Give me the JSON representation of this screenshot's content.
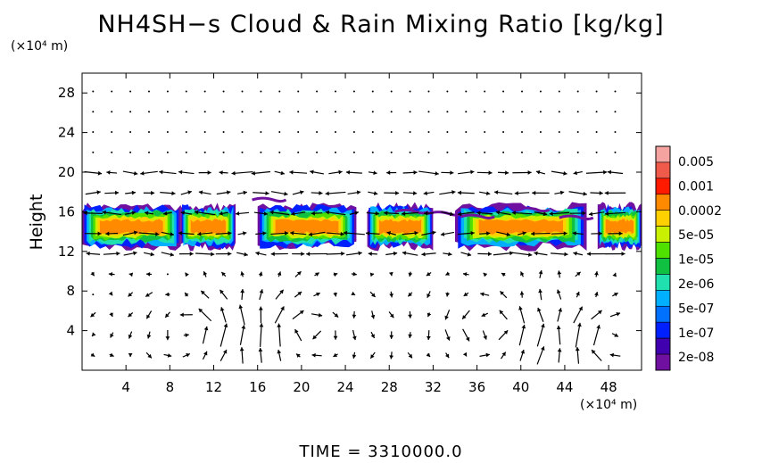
{
  "chart_data": {
    "type": "heatmap",
    "title": "NH4SH−s Cloud & Rain Mixing Ratio [kg/kg]",
    "y_unit": "(×10⁴ m)",
    "x_unit": "(×10⁴ m)",
    "ylabel": "Height",
    "footer": "TIME  =  3310000.0",
    "xlim": [
      0,
      51
    ],
    "ylim": [
      0,
      30
    ],
    "x_ticks": [
      4,
      8,
      12,
      16,
      20,
      24,
      28,
      32,
      36,
      40,
      44,
      48
    ],
    "y_ticks": [
      4,
      8,
      12,
      16,
      20,
      24,
      28
    ],
    "colorbar": {
      "labels": [
        "0.005",
        "0.001",
        "0.0002",
        "5e-05",
        "1e-05",
        "2e-06",
        "5e-07",
        "1e-07",
        "2e-08"
      ],
      "colors": [
        "#f4a3a0",
        "#f05a4a",
        "#ff1a00",
        "#ff8a00",
        "#ffd000",
        "#c8f000",
        "#50e000",
        "#10c040",
        "#20e0b0",
        "#00b0ff",
        "#0070ff",
        "#0020ff",
        "#4000b0",
        "#7010a0"
      ]
    },
    "cloud_band": {
      "y_range": [
        12.5,
        17.5
      ],
      "core_y": [
        13.5,
        15.5
      ],
      "segments_x": [
        [
          0,
          9
        ],
        [
          9,
          14
        ],
        [
          16,
          25
        ],
        [
          26,
          32
        ],
        [
          34,
          46
        ],
        [
          47,
          51
        ]
      ]
    },
    "vector_field": "wind vectors shown on grid; circulation cells near x=10, 38, 48 at low levels"
  }
}
